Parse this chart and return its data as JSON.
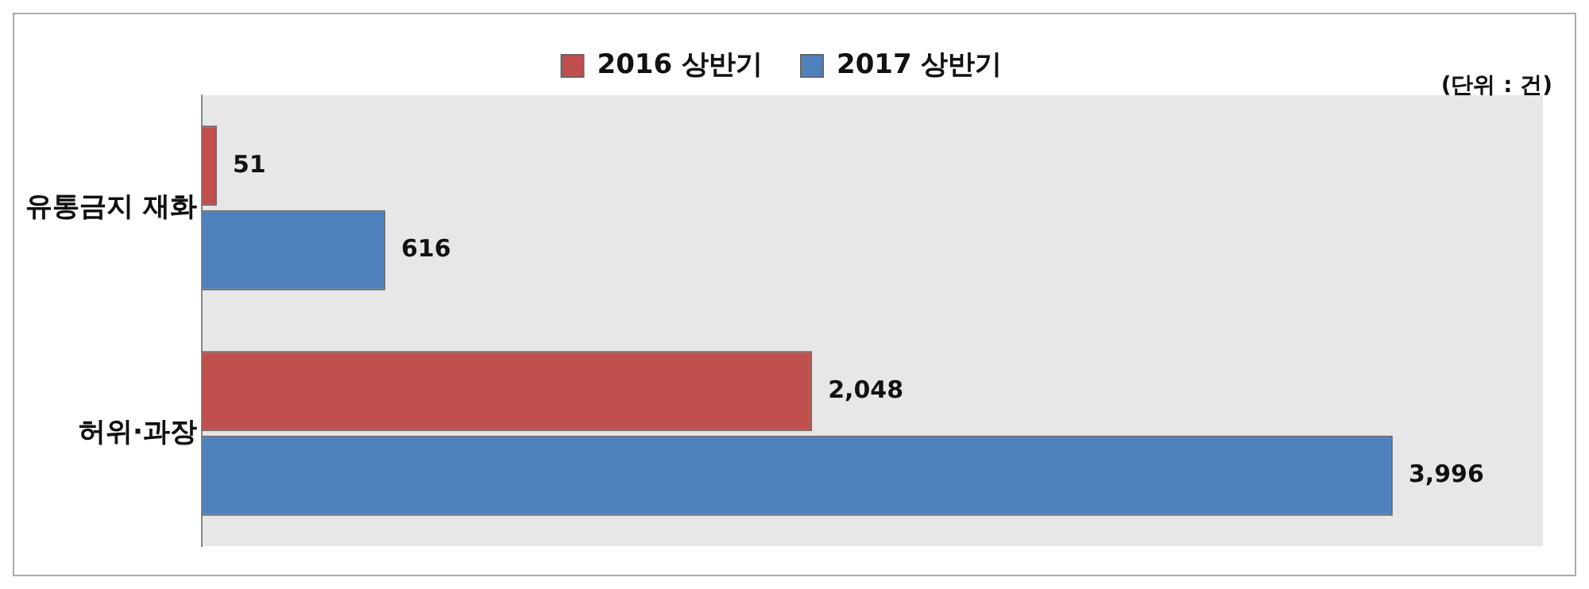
{
  "chart_data": {
    "type": "bar",
    "orientation": "horizontal",
    "categories": [
      "유통금지 재화",
      "허위·과장"
    ],
    "series": [
      {
        "name": "2016 상반기",
        "color": "#c0504d",
        "values": [
          51,
          2048
        ],
        "value_labels": [
          "51",
          "2,048"
        ]
      },
      {
        "name": "2017 상반기",
        "color": "#4f81bd",
        "values": [
          616,
          3996
        ],
        "value_labels": [
          "616",
          "3,996"
        ]
      }
    ],
    "legend": "top",
    "annotations": [
      "(단위 : 건)"
    ]
  }
}
